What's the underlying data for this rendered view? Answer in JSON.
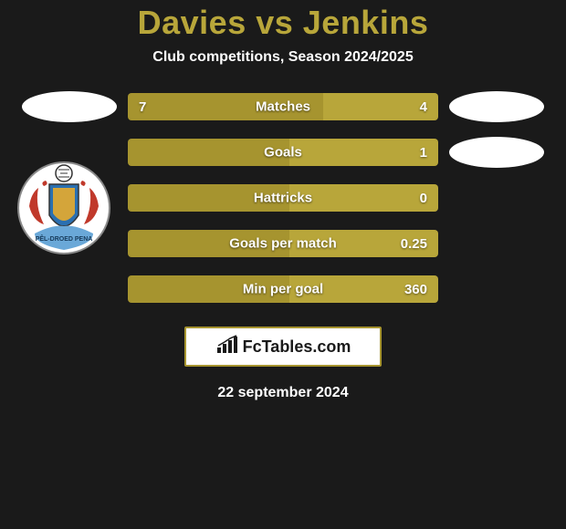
{
  "title": "Davies vs Jenkins",
  "subtitle": "Club competitions, Season 2024/2025",
  "date": "22 september 2024",
  "logo_text": "FcTables.com",
  "colors": {
    "background": "#1a1a1a",
    "accent": "#b8a63a",
    "bar_left": "#a6942f",
    "bar_right": "#b8a63a",
    "text_white": "#ffffff"
  },
  "rows": [
    {
      "label": "Matches",
      "left": "7",
      "right": "4",
      "left_pct": 63
    },
    {
      "label": "Goals",
      "left": "",
      "right": "1",
      "left_pct": 52
    },
    {
      "label": "Hattricks",
      "left": "",
      "right": "0",
      "left_pct": 52
    },
    {
      "label": "Goals per match",
      "left": "",
      "right": "0.25",
      "left_pct": 52
    },
    {
      "label": "Min per goal",
      "left": "",
      "right": "360",
      "left_pct": 52
    }
  ],
  "ovals": {
    "top_left": true,
    "top_right": true,
    "second_right": true
  }
}
